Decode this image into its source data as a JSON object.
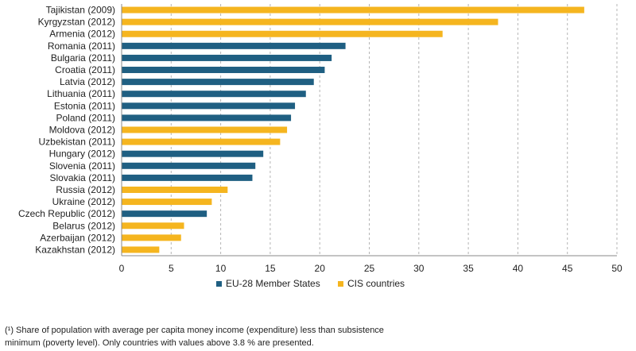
{
  "chart_data": {
    "type": "bar",
    "orientation": "horizontal",
    "categories": [
      "Tajikistan (2009)",
      "Kyrgyzstan (2012)",
      "Armenia (2012)",
      "Romania (2011)",
      "Bulgaria (2011)",
      "Croatia (2011)",
      "Latvia (2012)",
      "Lithuania (2011)",
      "Estonia (2011)",
      "Poland (2011)",
      "Moldova (2012)",
      "Uzbekistan (2011)",
      "Hungary (2012)",
      "Slovenia (2011)",
      "Slovakia (2011)",
      "Russia (2012)",
      "Ukraine (2012)",
      "Czech Republic (2012)",
      "Belarus (2012)",
      "Azerbaijan (2012)",
      "Kazakhstan (2012)"
    ],
    "values": [
      46.7,
      38.0,
      32.4,
      22.6,
      21.2,
      20.5,
      19.4,
      18.6,
      17.5,
      17.1,
      16.7,
      16.0,
      14.3,
      13.5,
      13.2,
      10.7,
      9.1,
      8.6,
      6.3,
      6.0,
      3.8
    ],
    "groups": [
      "cis",
      "cis",
      "cis",
      "eu",
      "eu",
      "eu",
      "eu",
      "eu",
      "eu",
      "eu",
      "cis",
      "cis",
      "eu",
      "eu",
      "eu",
      "cis",
      "cis",
      "eu",
      "cis",
      "cis",
      "cis"
    ],
    "series": [
      {
        "key": "eu",
        "name": "EU-28 Member States",
        "color": "#1f5f82"
      },
      {
        "key": "cis",
        "name": "CIS countries",
        "color": "#f5b51f"
      }
    ],
    "xlim": [
      0,
      50
    ],
    "xticks": [
      0,
      5,
      10,
      15,
      20,
      25,
      30,
      35,
      40,
      45,
      50
    ],
    "grid": "vertical dashed",
    "legend_position": "bottom-center",
    "title": "",
    "xlabel": "",
    "ylabel": ""
  },
  "footnote": {
    "line1": "(¹) Share of population with average per capita money income (expenditure) less than subsistence",
    "line2": "minimum (poverty level). Only countries with values above 3.8 % are presented."
  }
}
